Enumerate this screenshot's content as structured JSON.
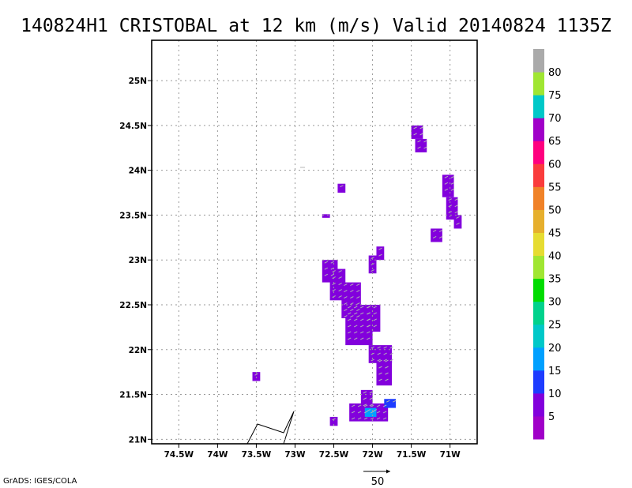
{
  "chart_data": {
    "type": "heatmap",
    "title": "140824H1 CRISTOBAL at 12 km (m/s) Valid 20140824 1135Z",
    "x_ticks": [
      "74.5W",
      "74W",
      "73.5W",
      "73W",
      "72.5W",
      "72W",
      "71.5W",
      "71W"
    ],
    "x_values": [
      -74.5,
      -74.0,
      -73.5,
      -73.0,
      -72.5,
      -72.0,
      -71.5,
      -71.0
    ],
    "y_ticks": [
      "21N",
      "21.5N",
      "22N",
      "22.5N",
      "23N",
      "23.5N",
      "24N",
      "24.5N",
      "25N"
    ],
    "y_values": [
      21.0,
      21.5,
      22.0,
      22.5,
      23.0,
      23.5,
      24.0,
      24.5,
      25.0
    ],
    "xlim": [
      -74.85,
      -70.65
    ],
    "ylim": [
      20.95,
      25.45
    ],
    "grid": true,
    "colorbar": {
      "levels": [
        "5",
        "10",
        "15",
        "20",
        "25",
        "30",
        "35",
        "40",
        "45",
        "50",
        "55",
        "60",
        "65",
        "70",
        "75",
        "80"
      ],
      "colors": [
        "#a000c8",
        "#8200dc",
        "#1e3cff",
        "#00a0ff",
        "#00c8c8",
        "#00d28c",
        "#00dc00",
        "#a0e632",
        "#e6dc32",
        "#e6af2d",
        "#f08228",
        "#fa3c3c",
        "#ff007f",
        "#a000c8",
        "#00c8c8",
        "#a0e632",
        "#aaaaaa"
      ]
    },
    "wind_cells": [
      {
        "lon_min": -71.5,
        "lon_max": -71.35,
        "lat_min": 24.35,
        "lat_max": 24.5,
        "speed": 5
      },
      {
        "lon_min": -71.45,
        "lon_max": -71.3,
        "lat_min": 24.2,
        "lat_max": 24.35,
        "speed": 5
      },
      {
        "lon_min": -71.1,
        "lon_max": -70.95,
        "lat_min": 23.7,
        "lat_max": 23.95,
        "speed": 5
      },
      {
        "lon_min": -71.05,
        "lon_max": -70.9,
        "lat_min": 23.45,
        "lat_max": 23.7,
        "speed": 5
      },
      {
        "lon_min": -70.95,
        "lon_max": -70.85,
        "lat_min": 23.35,
        "lat_max": 23.5,
        "speed": 5
      },
      {
        "lon_min": -71.25,
        "lon_max": -71.1,
        "lat_min": 23.2,
        "lat_max": 23.35,
        "speed": 5
      },
      {
        "lon_min": -72.45,
        "lon_max": -72.35,
        "lat_min": 23.75,
        "lat_max": 23.85,
        "speed": 5
      },
      {
        "lon_min": -72.65,
        "lon_max": -72.55,
        "lat_min": 23.47,
        "lat_max": 23.51,
        "speed": 5
      },
      {
        "lon_min": -72.05,
        "lon_max": -71.95,
        "lat_min": 22.85,
        "lat_max": 23.05,
        "speed": 5
      },
      {
        "lon_min": -71.95,
        "lon_max": -71.85,
        "lat_min": 23.0,
        "lat_max": 23.15,
        "speed": 5
      },
      {
        "lon_min": -72.65,
        "lon_max": -72.45,
        "lat_min": 22.75,
        "lat_max": 23.0,
        "speed": 5
      },
      {
        "lon_min": -72.55,
        "lon_max": -72.35,
        "lat_min": 22.55,
        "lat_max": 22.9,
        "speed": 5
      },
      {
        "lon_min": -72.4,
        "lon_max": -72.15,
        "lat_min": 22.35,
        "lat_max": 22.75,
        "speed": 5
      },
      {
        "lon_min": -72.35,
        "lon_max": -72.0,
        "lat_min": 22.05,
        "lat_max": 22.5,
        "speed": 5
      },
      {
        "lon_min": -72.1,
        "lon_max": -71.9,
        "lat_min": 22.2,
        "lat_max": 22.5,
        "speed": 5
      },
      {
        "lon_min": -72.05,
        "lon_max": -71.75,
        "lat_min": 21.85,
        "lat_max": 22.05,
        "speed": 5
      },
      {
        "lon_min": -71.95,
        "lon_max": -71.75,
        "lat_min": 21.6,
        "lat_max": 21.9,
        "speed": 5
      },
      {
        "lon_min": -72.15,
        "lon_max": -72.0,
        "lat_min": 21.35,
        "lat_max": 21.55,
        "speed": 5
      },
      {
        "lon_min": -72.3,
        "lon_max": -71.8,
        "lat_min": 21.2,
        "lat_max": 21.4,
        "speed": 5
      },
      {
        "lon_min": -71.85,
        "lon_max": -71.7,
        "lat_min": 21.35,
        "lat_max": 21.45,
        "speed": 10
      },
      {
        "lon_min": -72.1,
        "lon_max": -71.95,
        "lat_min": 21.25,
        "lat_max": 21.35,
        "speed": 15
      },
      {
        "lon_min": -73.55,
        "lon_max": -73.45,
        "lat_min": 21.65,
        "lat_max": 21.75,
        "speed": 5
      },
      {
        "lon_min": -72.55,
        "lon_max": -72.45,
        "lat_min": 21.15,
        "lat_max": 21.25,
        "speed": 5
      }
    ],
    "reference_vector": "50",
    "footer": "GrADS: IGES/COLA"
  }
}
